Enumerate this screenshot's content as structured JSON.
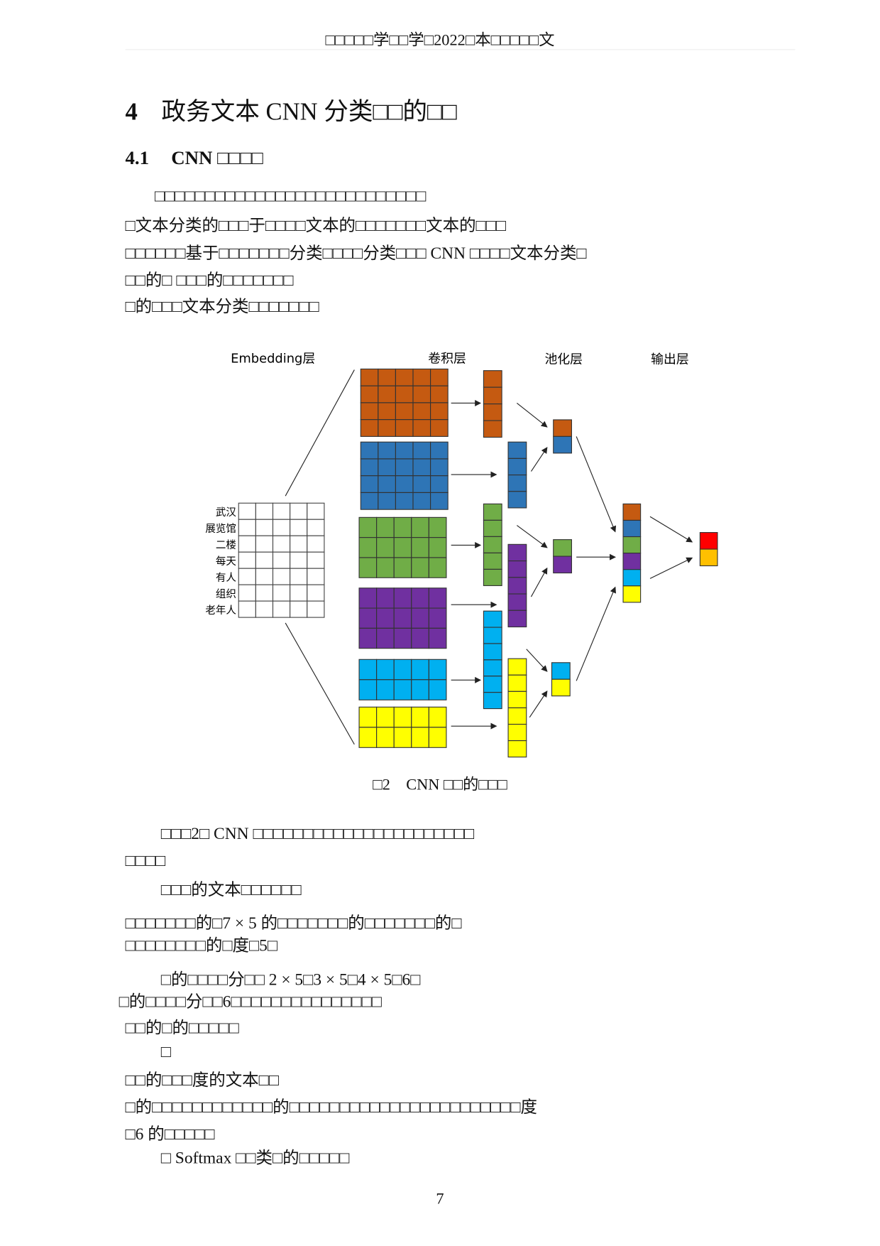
{
  "header": {
    "running_title": "□□□□□学□□学□2022□本□□□□□文"
  },
  "chapter": {
    "number": "4",
    "title": "政务文本 CNN 分类□□的□□"
  },
  "section": {
    "number": "4.1",
    "title": "CNN □□□□"
  },
  "paragraph1": [
    "□□□□□□□□□□□□□□□□□□□□□□□□□□□",
    "□文本分类的□□□于□□□□文本的□□□□□□□文本的□□□",
    "□□□□□□基于□□□□□□□分类□□□□分类□□□ CNN □□□□文本分类□",
    "□□的□ □□□的□□□□□□□",
    "□的□□□文本分类□□□□□□□"
  ],
  "figure": {
    "layer_labels": [
      "Embedding层",
      "卷积层",
      "池化层",
      "输出层"
    ],
    "words": [
      "武汉",
      "展览馆",
      "二楼",
      "每天",
      "有人",
      "组织",
      "老年人"
    ],
    "colors": {
      "orange": "#c55a11",
      "blue": "#2e75b6",
      "green": "#70ad47",
      "purple": "#7030a0",
      "cyan": "#00b0f0",
      "yellow": "#ffff00",
      "red": "#ff0000",
      "amber": "#ffc000"
    },
    "caption": "□2　CNN □□的□□□"
  },
  "paragraph2": [
    "□□□2□ CNN □□□□□□□□□□□□□□□□□□□□□□",
    "□□□□",
    "□□□的文本□□□□□□",
    "□□□□□□□的□7 × 5 的□□□□□□□的□□□□□□□的□",
    "□□□□□□□□的□度□5□",
    "□的□□□□分□□ 2 × 5□3 × 5□4 × 5□6□",
    "□的□□□□分□□6□□□□□□□□□□□□□□□",
    "□□的□的□□□□□",
    "□",
    "□□的□□□度的文本□□",
    "□的□□□□□□□□□□□□的□□□□□□□□□□□□□□□□□□□□□□□度",
    "□6 的□□□□□",
    "□ Softmax □□类□的□□□□□"
  ],
  "page_number": "7"
}
